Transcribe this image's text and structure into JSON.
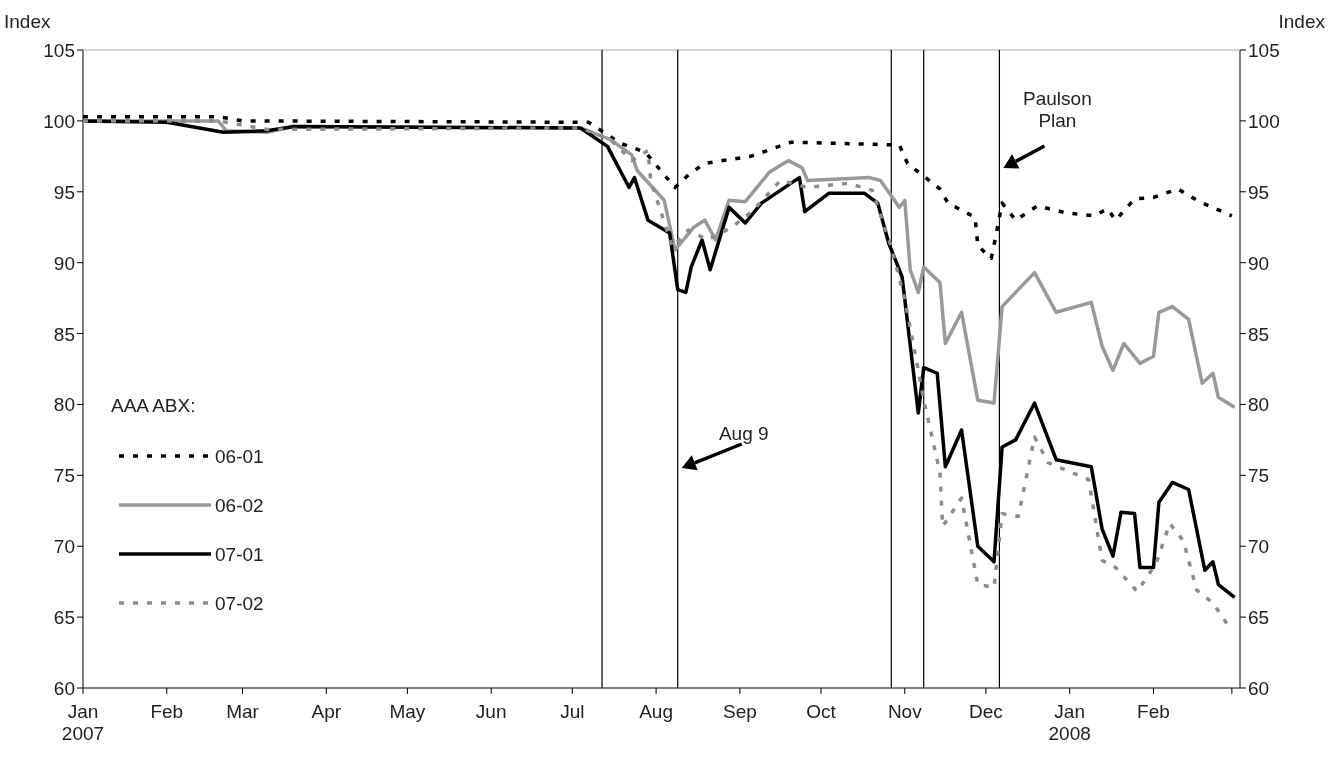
{
  "chart_data": {
    "type": "line",
    "ylabel": "Index",
    "y2label": "Index",
    "legend_title": "AAA ABX:",
    "legend": "bottom left",
    "grid": false,
    "xlim": [
      "2007-01-01",
      "2008-03-04"
    ],
    "xticks": [
      {
        "value": "2007-01-01",
        "label": "Jan\n2007"
      },
      {
        "value": "2007-02-01",
        "label": "Feb"
      },
      {
        "value": "2007-03-01",
        "label": "Mar"
      },
      {
        "value": "2007-04-01",
        "label": "Apr"
      },
      {
        "value": "2007-05-01",
        "label": "May"
      },
      {
        "value": "2007-06-01",
        "label": "Jun"
      },
      {
        "value": "2007-07-01",
        "label": "Jul"
      },
      {
        "value": "2007-08-01",
        "label": "Aug"
      },
      {
        "value": "2007-09-01",
        "label": "Sep"
      },
      {
        "value": "2007-10-01",
        "label": "Oct"
      },
      {
        "value": "2007-11-01",
        "label": "Nov"
      },
      {
        "value": "2007-12-01",
        "label": "Dec"
      },
      {
        "value": "2008-01-01",
        "label": "Jan\n2008"
      },
      {
        "value": "2008-02-01",
        "label": "Feb"
      },
      {
        "value": "2008-03-01",
        "label": null
      }
    ],
    "ylim": [
      60,
      105
    ],
    "yticks": [
      60,
      65,
      70,
      75,
      80,
      85,
      90,
      95,
      100,
      105
    ],
    "y2lim": [
      60,
      105
    ],
    "y2ticks": [
      60,
      65,
      70,
      75,
      80,
      85,
      90,
      95,
      100,
      105
    ],
    "ref_lines": [
      {
        "axis": "x",
        "value": "2007-07-12",
        "color": "#000000"
      },
      {
        "axis": "x",
        "value": "2007-08-09",
        "label": "Aug 9",
        "color": "#000000"
      },
      {
        "axis": "x",
        "value": "2007-10-27",
        "color": "#000000"
      },
      {
        "axis": "x",
        "value": "2007-11-08",
        "color": "#000000"
      },
      {
        "axis": "x",
        "value": "2007-12-06",
        "label": "Paulson\nPlan",
        "color": "#000000"
      }
    ],
    "series": [
      {
        "name": "06-01",
        "color": "#000000",
        "line_style": "dotted",
        "x": [
          "2007-01-01",
          "2007-02-20",
          "2007-03-01",
          "2007-07-07",
          "2007-07-19",
          "2007-07-28",
          "2007-08-08",
          "2007-08-13",
          "2007-08-19",
          "2007-09-05",
          "2007-09-20",
          "2007-10-30",
          "2007-11-02",
          "2007-11-14",
          "2007-11-17",
          "2007-11-27",
          "2007-11-28",
          "2007-12-03",
          "2007-12-05",
          "2007-12-07",
          "2007-12-12",
          "2007-12-20",
          "2007-12-31",
          "2008-01-10",
          "2008-01-15",
          "2008-01-18",
          "2008-01-25",
          "2008-02-01",
          "2008-02-10",
          "2008-02-18",
          "2008-03-01"
        ],
        "values": [
          100.3,
          100.3,
          100.0,
          99.9,
          98.4,
          97.8,
          95.3,
          96.2,
          97.0,
          97.5,
          98.5,
          98.3,
          97.0,
          95.2,
          94.2,
          93.2,
          91.2,
          90.3,
          92.2,
          94.2,
          93.0,
          94.0,
          93.5,
          93.3,
          93.8,
          93.0,
          94.5,
          94.6,
          95.2,
          94.3,
          93.3
        ]
      },
      {
        "name": "06-02",
        "color": "#999999",
        "line_style": "solid",
        "x": [
          "2007-01-01",
          "2007-02-20",
          "2007-02-23",
          "2007-03-10",
          "2007-03-20",
          "2007-07-04",
          "2007-07-15",
          "2007-07-23",
          "2007-07-25",
          "2007-08-04",
          "2007-08-08",
          "2007-08-15",
          "2007-08-19",
          "2007-08-23",
          "2007-08-28",
          "2007-09-03",
          "2007-09-12",
          "2007-09-19",
          "2007-09-24",
          "2007-09-26",
          "2007-10-19",
          "2007-10-23",
          "2007-10-30",
          "2007-11-01",
          "2007-11-03",
          "2007-11-06",
          "2007-11-08",
          "2007-11-14",
          "2007-11-16",
          "2007-11-22",
          "2007-11-28",
          "2007-12-04",
          "2007-12-07",
          "2007-12-19",
          "2007-12-27",
          "2008-01-09",
          "2008-01-13",
          "2008-01-17",
          "2008-01-21",
          "2008-01-27",
          "2008-02-01",
          "2008-02-03",
          "2008-02-08",
          "2008-02-14",
          "2008-02-19",
          "2008-02-23",
          "2008-02-25",
          "2008-03-02"
        ],
        "values": [
          100.0,
          100.0,
          99.3,
          99.2,
          99.6,
          99.5,
          98.7,
          97.6,
          96.5,
          94.4,
          90.9,
          92.5,
          93.0,
          91.6,
          94.4,
          94.3,
          96.4,
          97.2,
          96.7,
          95.8,
          96.0,
          95.8,
          93.9,
          94.4,
          89.5,
          87.9,
          89.7,
          88.6,
          84.3,
          86.5,
          80.3,
          80.1,
          86.9,
          89.3,
          86.5,
          87.2,
          84.1,
          82.4,
          84.3,
          82.9,
          83.4,
          86.5,
          86.9,
          86.0,
          81.5,
          82.2,
          80.5,
          79.8
        ]
      },
      {
        "name": "07-01",
        "color": "#000000",
        "line_style": "solid",
        "x": [
          "2007-01-01",
          "2007-02-01",
          "2007-02-22",
          "2007-03-10",
          "2007-03-20",
          "2007-07-04",
          "2007-07-14",
          "2007-07-22",
          "2007-07-24",
          "2007-07-29",
          "2007-08-06",
          "2007-08-09",
          "2007-08-12",
          "2007-08-14",
          "2007-08-18",
          "2007-08-21",
          "2007-08-28",
          "2007-09-03",
          "2007-09-09",
          "2007-09-23",
          "2007-09-25",
          "2007-10-04",
          "2007-10-17",
          "2007-10-22",
          "2007-10-26",
          "2007-10-31",
          "2007-11-06",
          "2007-11-08",
          "2007-11-13",
          "2007-11-16",
          "2007-11-22",
          "2007-11-28",
          "2007-12-04",
          "2007-12-07",
          "2007-12-12",
          "2007-12-19",
          "2007-12-27",
          "2008-01-09",
          "2008-01-13",
          "2008-01-17",
          "2008-01-20",
          "2008-01-25",
          "2008-01-27",
          "2008-02-01",
          "2008-02-03",
          "2008-02-08",
          "2008-02-14",
          "2008-02-20",
          "2008-02-23",
          "2008-02-25",
          "2008-03-02"
        ],
        "values": [
          100.0,
          99.9,
          99.2,
          99.3,
          99.6,
          99.5,
          98.2,
          95.3,
          96.0,
          93.0,
          92.1,
          88.1,
          87.9,
          89.7,
          91.6,
          89.5,
          93.9,
          92.8,
          94.2,
          96.0,
          93.6,
          94.9,
          94.9,
          94.2,
          91.4,
          89.0,
          79.4,
          82.6,
          82.2,
          75.6,
          78.2,
          70.0,
          68.9,
          77.0,
          77.5,
          80.1,
          76.1,
          75.6,
          71.2,
          69.3,
          72.4,
          72.3,
          68.5,
          68.5,
          73.1,
          74.5,
          74.0,
          68.3,
          68.9,
          67.3,
          66.4
        ]
      },
      {
        "name": "07-02",
        "color": "#8c8c8c",
        "line_style": "dotted",
        "x": [
          "2007-01-01",
          "2007-02-20",
          "2007-03-10",
          "2007-07-04",
          "2007-07-15",
          "2007-07-23",
          "2007-07-29",
          "2007-07-30",
          "2007-08-07",
          "2007-08-13",
          "2007-08-20",
          "2007-08-29",
          "2007-09-06",
          "2007-09-16",
          "2007-09-26",
          "2007-10-11",
          "2007-10-20",
          "2007-10-27",
          "2007-11-01",
          "2007-11-05",
          "2007-11-08",
          "2007-11-14",
          "2007-11-15",
          "2007-11-22",
          "2007-11-28",
          "2007-12-04",
          "2007-12-07",
          "2007-12-13",
          "2007-12-19",
          "2007-12-24",
          "2008-01-08",
          "2008-01-13",
          "2008-01-18",
          "2008-01-26",
          "2008-02-02",
          "2008-02-07",
          "2008-02-12",
          "2008-02-17",
          "2008-02-23",
          "2008-02-29"
        ],
        "values": [
          100.0,
          100.0,
          99.4,
          99.5,
          98.7,
          97.2,
          97.9,
          95.8,
          91.1,
          92.3,
          91.6,
          92.5,
          93.7,
          95.8,
          95.3,
          95.6,
          95.1,
          91.1,
          87.4,
          83.4,
          80.3,
          75.2,
          71.4,
          73.4,
          67.3,
          67.1,
          72.3,
          72.1,
          77.7,
          75.9,
          74.7,
          69.0,
          68.5,
          66.8,
          68.8,
          71.6,
          70.4,
          66.9,
          66.0,
          64.3
        ]
      }
    ]
  }
}
